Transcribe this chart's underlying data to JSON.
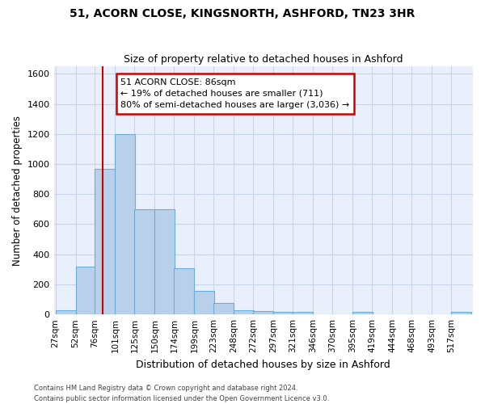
{
  "title1": "51, ACORN CLOSE, KINGSNORTH, ASHFORD, TN23 3HR",
  "title2": "Size of property relative to detached houses in Ashford",
  "xlabel": "Distribution of detached houses by size in Ashford",
  "ylabel": "Number of detached properties",
  "footer1": "Contains HM Land Registry data © Crown copyright and database right 2024.",
  "footer2": "Contains public sector information licensed under the Open Government Licence v3.0.",
  "annotation_title": "51 ACORN CLOSE: 86sqm",
  "annotation_line1": "← 19% of detached houses are smaller (711)",
  "annotation_line2": "80% of semi-detached houses are larger (3,036) →",
  "vline_x": 86,
  "bar_edges": [
    27,
    52,
    76,
    101,
    125,
    150,
    174,
    199,
    223,
    248,
    272,
    297,
    321,
    346,
    370,
    395,
    419,
    444,
    468,
    493,
    517
  ],
  "bar_heights": [
    30,
    320,
    970,
    1200,
    700,
    700,
    305,
    155,
    75,
    30,
    20,
    15,
    15,
    0,
    0,
    15,
    0,
    0,
    0,
    0,
    15
  ],
  "bar_color": "#b8d0ea",
  "bar_edge_color": "#6aaed6",
  "vline_color": "#cc0000",
  "annotation_box_color": "#cc0000",
  "bg_color": "#eaf0fb",
  "grid_color": "#c8d4e8",
  "ylim": [
    0,
    1650
  ],
  "yticks": [
    0,
    200,
    400,
    600,
    800,
    1000,
    1200,
    1400,
    1600
  ],
  "bin_width": 25
}
